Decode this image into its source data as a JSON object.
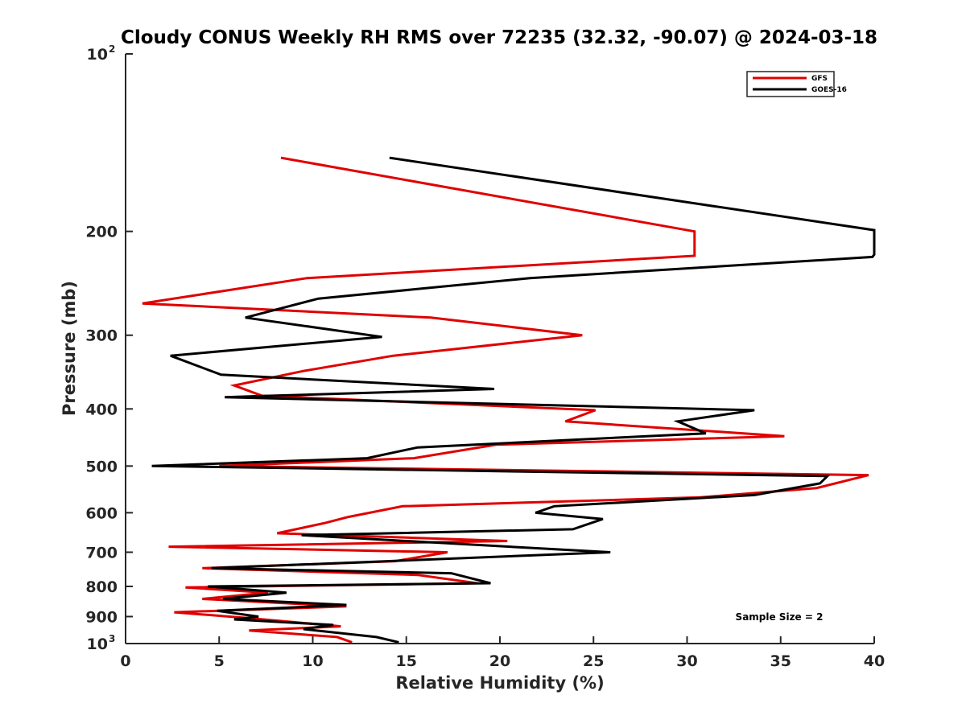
{
  "chart_data": {
    "type": "line",
    "title": "Cloudy CONUS Weekly RH RMS over 72235 (32.32, -90.07) @ 2024-03-18",
    "xlabel": "Relative Humidity (%)",
    "ylabel": "Pressure (mb)",
    "xlim": [
      0,
      40
    ],
    "ylim": [
      100,
      1000
    ],
    "yscale": "log",
    "y_reversed": true,
    "x_ticks": [
      0,
      5,
      10,
      15,
      20,
      25,
      30,
      35,
      40
    ],
    "x_tick_labels": [
      "0",
      "5",
      "10",
      "15",
      "20",
      "25",
      "30",
      "35",
      "40"
    ],
    "y_ticks": [
      200,
      300,
      400,
      500,
      600,
      700,
      800,
      900
    ],
    "y_tick_labels": [
      "200",
      "300",
      "400",
      "500",
      "600",
      "700",
      "800",
      "900"
    ],
    "y_end_labels": [
      {
        "value": 100,
        "base": "10",
        "exp": "2"
      },
      {
        "value": 1000,
        "base": "10",
        "exp": "3"
      }
    ],
    "legend_position": "top-right",
    "annotation": "Sample Size = 2",
    "series": [
      {
        "name": "GFS",
        "color": "#e00000",
        "points": [
          [
            8.3,
            150
          ],
          [
            30.4,
            200
          ],
          [
            30.4,
            220
          ],
          [
            9.7,
            240
          ],
          [
            0.9,
            265
          ],
          [
            16.3,
            280
          ],
          [
            24.4,
            300
          ],
          [
            14.3,
            325
          ],
          [
            9.5,
            345
          ],
          [
            5.8,
            365
          ],
          [
            7.3,
            380
          ],
          [
            25.1,
            402
          ],
          [
            23.5,
            420
          ],
          [
            35.2,
            445
          ],
          [
            19.8,
            460
          ],
          [
            15.4,
            485
          ],
          [
            5.0,
            500
          ],
          [
            39.7,
            518
          ],
          [
            36.9,
            545
          ],
          [
            30.7,
            565
          ],
          [
            14.8,
            585
          ],
          [
            11.9,
            610
          ],
          [
            10.6,
            625
          ],
          [
            8.1,
            650
          ],
          [
            20.4,
            670
          ],
          [
            2.3,
            685
          ],
          [
            17.2,
            700
          ],
          [
            14.4,
            725
          ],
          [
            4.1,
            745
          ],
          [
            15.6,
            765
          ],
          [
            18.8,
            790
          ],
          [
            3.2,
            803
          ],
          [
            7.6,
            820
          ],
          [
            4.1,
            840
          ],
          [
            11.8,
            865
          ],
          [
            2.6,
            885
          ],
          [
            6.5,
            905
          ],
          [
            11.5,
            935
          ],
          [
            6.6,
            950
          ],
          [
            11.3,
            975
          ],
          [
            12.1,
            995
          ]
        ]
      },
      {
        "name": "GOES-16",
        "color": "#000000",
        "points": [
          [
            14.1,
            150
          ],
          [
            40.0,
            199
          ],
          [
            40.0,
            219
          ],
          [
            39.9,
            221
          ],
          [
            21.6,
            240
          ],
          [
            10.3,
            260
          ],
          [
            6.4,
            280
          ],
          [
            13.7,
            302
          ],
          [
            2.4,
            325
          ],
          [
            5.1,
            350
          ],
          [
            19.7,
            370
          ],
          [
            7.7,
            380
          ],
          [
            5.3,
            382
          ],
          [
            33.6,
            402
          ],
          [
            29.5,
            420
          ],
          [
            31.0,
            440
          ],
          [
            15.6,
            465
          ],
          [
            12.9,
            485
          ],
          [
            1.4,
            500
          ],
          [
            37.5,
            520
          ],
          [
            37.1,
            535
          ],
          [
            33.6,
            560
          ],
          [
            22.9,
            585
          ],
          [
            21.9,
            600
          ],
          [
            25.5,
            615
          ],
          [
            23.9,
            640
          ],
          [
            9.4,
            655
          ],
          [
            25.9,
            700
          ],
          [
            4.6,
            745
          ],
          [
            17.4,
            760
          ],
          [
            19.5,
            790
          ],
          [
            4.4,
            800
          ],
          [
            8.6,
            820
          ],
          [
            5.2,
            840
          ],
          [
            11.8,
            860
          ],
          [
            4.9,
            880
          ],
          [
            7.1,
            900
          ],
          [
            5.8,
            910
          ],
          [
            11.1,
            930
          ],
          [
            9.5,
            945
          ],
          [
            13.4,
            975
          ],
          [
            14.6,
            995
          ]
        ]
      }
    ]
  }
}
